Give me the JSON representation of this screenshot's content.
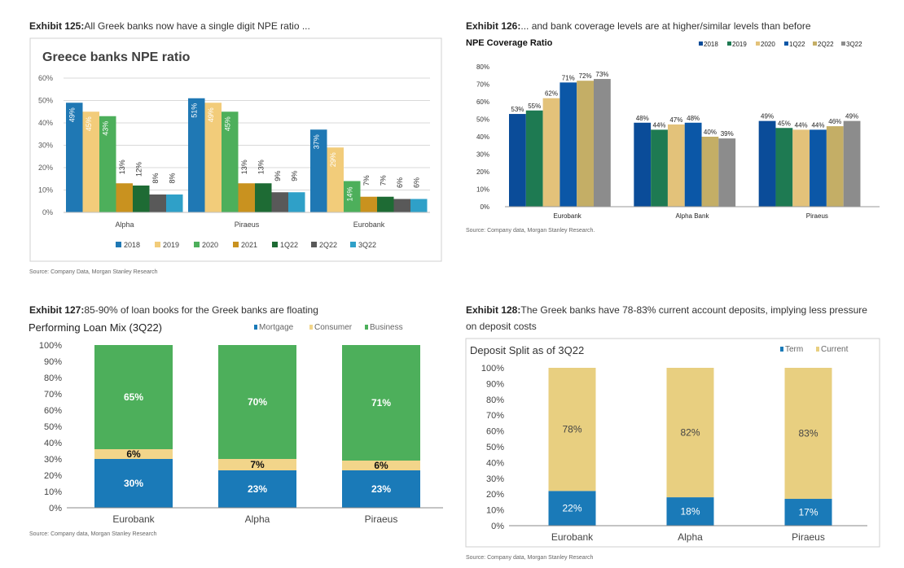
{
  "colors": {
    "npe_2018": "#1f78b4",
    "npe_2019": "#f2cc7a",
    "npe_2020": "#4daf5b",
    "npe_2021": "#c9921f",
    "npe_1q22": "#1e6b34",
    "npe_2q22": "#595959",
    "npe_3q22": "#2fa0c8",
    "cov_2018": "#0a4c99",
    "cov_2019": "#1e7a52",
    "cov_2020": "#e3c27a",
    "cov_1q22": "#0b57a7",
    "cov_2q22": "#c4ae66",
    "cov_3q22": "#8c8c8c",
    "mortgage": "#1a7ab8",
    "consumer": "#f2d58a",
    "business": "#4daf5b",
    "term": "#1a7ab8",
    "current": "#e8cf80"
  },
  "exhibits": [
    {
      "num": "Exhibit 125:",
      "text": "All Greek banks now have a single digit NPE ratio ...",
      "source": "Source: Company Data, Morgan Stanley Research"
    },
    {
      "num": "Exhibit 126:",
      "text": "... and bank coverage levels are at higher/similar levels than before",
      "source": "Source: Company data, Morgan Stanley Research."
    },
    {
      "num": "Exhibit 127:",
      "text": "85-90% of loan books for the Greek banks are floating",
      "source": "Source: Company data, Morgan Stanley Research"
    },
    {
      "num": "Exhibit 128:",
      "text": "The Greek banks have 78-83% current account deposits, implying less pressure",
      "text2": "on deposit costs",
      "source": "Source: Company data, Morgan Stanley Research"
    }
  ],
  "chart_data": [
    {
      "type": "bar",
      "title": "Greece banks NPE ratio",
      "categories": [
        "Alpha",
        "Piraeus",
        "Eurobank"
      ],
      "ylim": [
        0,
        60
      ],
      "yticks": [
        "0%",
        "10%",
        "20%",
        "30%",
        "40%",
        "50%",
        "60%"
      ],
      "series": [
        {
          "name": "2018",
          "values": [
            49,
            51,
            37
          ],
          "labels": [
            "49%",
            "51%",
            "37%"
          ]
        },
        {
          "name": "2019",
          "values": [
            45,
            49,
            29
          ],
          "labels": [
            "45%",
            "49%",
            "29%"
          ]
        },
        {
          "name": "2020",
          "values": [
            43,
            45,
            14
          ],
          "labels": [
            "43%",
            "45%",
            "14%"
          ]
        },
        {
          "name": "2021",
          "values": [
            13,
            13,
            7
          ],
          "labels": [
            "13%",
            "13%",
            "7%"
          ]
        },
        {
          "name": "1Q22",
          "values": [
            12,
            13,
            7
          ],
          "labels": [
            "12%",
            "13%",
            "7%"
          ]
        },
        {
          "name": "2Q22",
          "values": [
            8,
            9,
            6
          ],
          "labels": [
            "8%",
            "9%",
            "6%"
          ]
        },
        {
          "name": "3Q22",
          "values": [
            8,
            9,
            6
          ],
          "labels": [
            "8%",
            "9%",
            "6%"
          ]
        }
      ],
      "legend": "bottom"
    },
    {
      "type": "bar",
      "title": "NPE Coverage Ratio",
      "categories": [
        "Eurobank",
        "Alpha Bank",
        "Piraeus"
      ],
      "ylim": [
        0,
        80
      ],
      "yticks": [
        "0%",
        "10%",
        "20%",
        "30%",
        "40%",
        "50%",
        "60%",
        "70%",
        "80%"
      ],
      "series": [
        {
          "name": "2018",
          "values": [
            53,
            48,
            49
          ],
          "labels": [
            "53%",
            "48%",
            "49%"
          ]
        },
        {
          "name": "2019",
          "values": [
            55,
            44,
            45
          ],
          "labels": [
            "55%",
            "44%",
            "45%"
          ]
        },
        {
          "name": "2020",
          "values": [
            62,
            47,
            44
          ],
          "labels": [
            "62%",
            "47%",
            "44%"
          ]
        },
        {
          "name": "1Q22",
          "values": [
            71,
            48,
            44
          ],
          "labels": [
            "71%",
            "48%",
            "44%"
          ]
        },
        {
          "name": "2Q22",
          "values": [
            72,
            40,
            46
          ],
          "labels": [
            "72%",
            "40%",
            "46%"
          ]
        },
        {
          "name": "3Q22",
          "values": [
            73,
            39,
            49
          ],
          "labels": [
            "73%",
            "39%",
            "49%"
          ]
        }
      ],
      "legend": "top-right"
    },
    {
      "type": "stacked-bar",
      "title": "Performing Loan Mix (3Q22)",
      "categories": [
        "Eurobank",
        "Alpha",
        "Piraeus"
      ],
      "ylim": [
        0,
        100
      ],
      "yticks": [
        "0%",
        "10%",
        "20%",
        "30%",
        "40%",
        "50%",
        "60%",
        "70%",
        "80%",
        "90%",
        "100%"
      ],
      "series": [
        {
          "name": "Mortgage",
          "values": [
            30,
            23,
            23
          ],
          "labels": [
            "30%",
            "23%",
            "23%"
          ]
        },
        {
          "name": "Consumer",
          "values": [
            6,
            7,
            6
          ],
          "labels": [
            "6%",
            "7%",
            "6%"
          ]
        },
        {
          "name": "Business",
          "values": [
            65,
            70,
            71
          ],
          "labels": [
            "65%",
            "70%",
            "71%"
          ]
        }
      ],
      "legend": "top-right"
    },
    {
      "type": "stacked-bar",
      "title": "Deposit Split as of 3Q22",
      "categories": [
        "Eurobank",
        "Alpha",
        "Piraeus"
      ],
      "ylim": [
        0,
        100
      ],
      "yticks": [
        "0%",
        "10%",
        "20%",
        "30%",
        "40%",
        "50%",
        "60%",
        "70%",
        "80%",
        "90%",
        "100%"
      ],
      "series": [
        {
          "name": "Term",
          "values": [
            22,
            18,
            17
          ],
          "labels": [
            "22%",
            "18%",
            "17%"
          ]
        },
        {
          "name": "Current",
          "values": [
            78,
            82,
            83
          ],
          "labels": [
            "78%",
            "82%",
            "83%"
          ]
        }
      ],
      "legend": "top-right"
    }
  ]
}
